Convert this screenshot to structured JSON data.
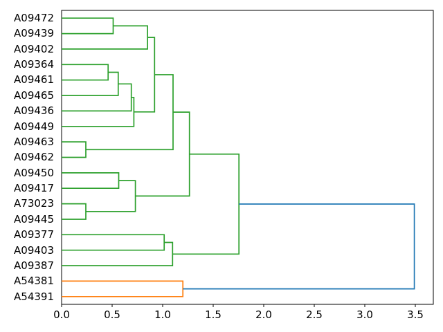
{
  "figure": {
    "background": "#ffffff",
    "title": ""
  },
  "chart_data": {
    "type": "dendrogram",
    "orientation": "right",
    "title": "",
    "xlabel": "",
    "ylabel": "",
    "grid": false,
    "xlim": [
      0,
      3.678
    ],
    "x_ticks": [
      "0.0",
      "0.5",
      "1.0",
      "1.5",
      "2.0",
      "2.5",
      "3.0",
      "3.5"
    ],
    "x_tick_values": [
      0,
      0.5,
      1.0,
      1.5,
      2.0,
      2.5,
      3.0,
      3.5
    ],
    "leaves": [
      "A09472",
      "A09439",
      "A09402",
      "A09364",
      "A09461",
      "A09465",
      "A09436",
      "A09449",
      "A09463",
      "A09462",
      "A09450",
      "A09417",
      "A73023",
      "A09445",
      "A09377",
      "A09403",
      "A09387",
      "A54381",
      "A54391"
    ],
    "palette": {
      "green": "#2ca02c",
      "orange": "#ff7f0e",
      "blue": "#1f77b4",
      "axis": "#000000"
    },
    "links": [
      {
        "id": "L1",
        "children": [
          "A09472",
          "A09439"
        ],
        "distance": 0.51,
        "color": "green"
      },
      {
        "id": "L2",
        "children": [
          "L1",
          "A09402"
        ],
        "distance": 0.85,
        "color": "green"
      },
      {
        "id": "L3",
        "children": [
          "A09364",
          "A09461"
        ],
        "distance": 0.46,
        "color": "green"
      },
      {
        "id": "L4",
        "children": [
          "L3",
          "A09465"
        ],
        "distance": 0.56,
        "color": "green"
      },
      {
        "id": "L5",
        "children": [
          "L4",
          "A09436"
        ],
        "distance": 0.69,
        "color": "green"
      },
      {
        "id": "L6",
        "children": [
          "L5",
          "A09449"
        ],
        "distance": 0.715,
        "color": "green"
      },
      {
        "id": "L7",
        "children": [
          "A09463",
          "A09462"
        ],
        "distance": 0.24,
        "color": "green"
      },
      {
        "id": "L8",
        "children": [
          "A09450",
          "A09417"
        ],
        "distance": 0.565,
        "color": "green"
      },
      {
        "id": "L9",
        "children": [
          "A73023",
          "A09445"
        ],
        "distance": 0.24,
        "color": "green"
      },
      {
        "id": "L10",
        "children": [
          "L8",
          "L9"
        ],
        "distance": 0.73,
        "color": "green"
      },
      {
        "id": "L11",
        "children": [
          "L2",
          "L6"
        ],
        "distance": 0.92,
        "color": "green"
      },
      {
        "id": "L12",
        "children": [
          "L11",
          "L7"
        ],
        "distance": 1.103,
        "color": "green"
      },
      {
        "id": "L13",
        "children": [
          "L12",
          "L10"
        ],
        "distance": 1.265,
        "color": "green"
      },
      {
        "id": "L14",
        "children": [
          "A09377",
          "A09403"
        ],
        "distance": 1.015,
        "color": "green"
      },
      {
        "id": "L15",
        "children": [
          "L14",
          "A09387"
        ],
        "distance": 1.098,
        "color": "green"
      },
      {
        "id": "L16",
        "children": [
          "L13",
          "L15"
        ],
        "distance": 1.755,
        "color": "green"
      },
      {
        "id": "L17",
        "children": [
          "A54381",
          "A54391"
        ],
        "distance": 1.2,
        "color": "orange"
      },
      {
        "id": "L18",
        "children": [
          "L16",
          "L17"
        ],
        "distance": 3.49,
        "color": "blue"
      }
    ]
  }
}
